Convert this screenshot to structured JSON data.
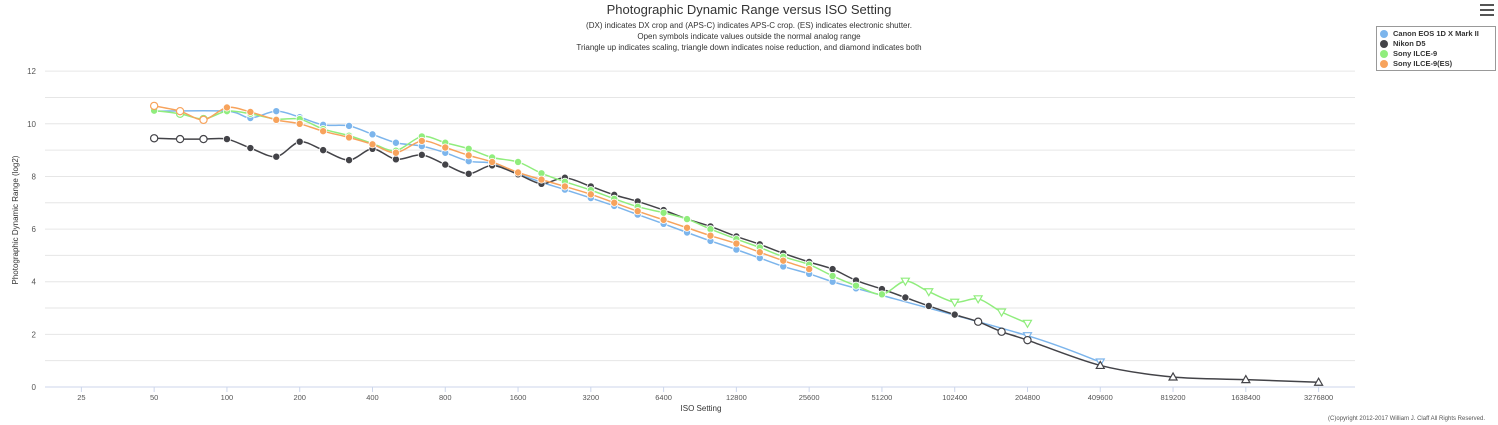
{
  "header": {
    "title": "Photographic Dynamic Range versus ISO Setting",
    "subtitle_lines": [
      "(DX) indicates DX crop and (APS-C) indicates APS-C crop. (ES) indicates electronic shutter.",
      "Open symbols indicate values outside the normal analog range",
      "Triangle up indicates scaling, triangle down indicates noise reduction, and diamond indicates both"
    ]
  },
  "menu_icon": "hamburger-menu-icon",
  "copyright": "(C)opyright 2012-2017 William J. Claff All Rights Reserved.",
  "chart_data": {
    "type": "line",
    "title": "Photographic Dynamic Range versus ISO Setting",
    "xlabel": "ISO Setting",
    "ylabel": "Photographic Dynamic Range (log2)",
    "x_scale": "log2",
    "xlim": [
      17.68,
      4634500
    ],
    "ylim": [
      0,
      12.5
    ],
    "x_ticks": [
      25,
      50,
      100,
      200,
      400,
      800,
      1600,
      3200,
      6400,
      12800,
      25600,
      51200,
      102400,
      204800,
      409600,
      819200,
      1638400,
      3276800
    ],
    "y_ticks": [
      0,
      2,
      4,
      6,
      8,
      10,
      12
    ],
    "grid": true,
    "legend_position": "top-right",
    "series": [
      {
        "name": "Canon EOS 1D X Mark II",
        "color": "#7cb5ec",
        "points": [
          {
            "x": 50,
            "y": 10.48,
            "marker": "circle"
          },
          {
            "x": 100,
            "y": 10.48,
            "marker": "circle"
          },
          {
            "x": 125,
            "y": 10.22,
            "marker": "circle"
          },
          {
            "x": 160,
            "y": 10.48,
            "marker": "circle"
          },
          {
            "x": 200,
            "y": 10.25,
            "marker": "circle"
          },
          {
            "x": 250,
            "y": 9.96,
            "marker": "circle"
          },
          {
            "x": 320,
            "y": 9.92,
            "marker": "circle"
          },
          {
            "x": 400,
            "y": 9.6,
            "marker": "circle"
          },
          {
            "x": 500,
            "y": 9.28,
            "marker": "circle"
          },
          {
            "x": 640,
            "y": 9.15,
            "marker": "circle"
          },
          {
            "x": 800,
            "y": 8.9,
            "marker": "circle"
          },
          {
            "x": 1000,
            "y": 8.58,
            "marker": "circle"
          },
          {
            "x": 1250,
            "y": 8.5,
            "marker": "circle"
          },
          {
            "x": 1600,
            "y": 8.1,
            "marker": "circle"
          },
          {
            "x": 2000,
            "y": 7.78,
            "marker": "circle"
          },
          {
            "x": 2500,
            "y": 7.5,
            "marker": "circle"
          },
          {
            "x": 3200,
            "y": 7.18,
            "marker": "circle"
          },
          {
            "x": 4000,
            "y": 6.88,
            "marker": "circle"
          },
          {
            "x": 5000,
            "y": 6.55,
            "marker": "circle"
          },
          {
            "x": 6400,
            "y": 6.2,
            "marker": "circle"
          },
          {
            "x": 8000,
            "y": 5.87,
            "marker": "circle"
          },
          {
            "x": 10000,
            "y": 5.55,
            "marker": "circle"
          },
          {
            "x": 12800,
            "y": 5.22,
            "marker": "circle"
          },
          {
            "x": 16000,
            "y": 4.9,
            "marker": "circle"
          },
          {
            "x": 20000,
            "y": 4.58,
            "marker": "circle"
          },
          {
            "x": 25600,
            "y": 4.3,
            "marker": "circle"
          },
          {
            "x": 32000,
            "y": 4.0,
            "marker": "circle"
          },
          {
            "x": 40000,
            "y": 3.75,
            "marker": "circle"
          },
          {
            "x": 204800,
            "y": 1.95,
            "marker": "triangle-down-open"
          },
          {
            "x": 409600,
            "y": 0.95,
            "marker": "triangle-down-open"
          }
        ]
      },
      {
        "name": "Nikon D5",
        "color": "#434348",
        "points": [
          {
            "x": 50,
            "y": 9.45,
            "marker": "circle-open"
          },
          {
            "x": 64,
            "y": 9.42,
            "marker": "circle-open"
          },
          {
            "x": 80,
            "y": 9.42,
            "marker": "circle-open"
          },
          {
            "x": 100,
            "y": 9.42,
            "marker": "circle"
          },
          {
            "x": 125,
            "y": 9.08,
            "marker": "circle"
          },
          {
            "x": 160,
            "y": 8.75,
            "marker": "circle"
          },
          {
            "x": 200,
            "y": 9.32,
            "marker": "circle"
          },
          {
            "x": 250,
            "y": 9.0,
            "marker": "circle"
          },
          {
            "x": 320,
            "y": 8.62,
            "marker": "circle"
          },
          {
            "x": 400,
            "y": 9.05,
            "marker": "circle"
          },
          {
            "x": 500,
            "y": 8.65,
            "marker": "circle"
          },
          {
            "x": 640,
            "y": 8.82,
            "marker": "circle"
          },
          {
            "x": 800,
            "y": 8.45,
            "marker": "circle"
          },
          {
            "x": 1000,
            "y": 8.1,
            "marker": "circle"
          },
          {
            "x": 1250,
            "y": 8.42,
            "marker": "circle"
          },
          {
            "x": 1600,
            "y": 8.08,
            "marker": "circle"
          },
          {
            "x": 2000,
            "y": 7.72,
            "marker": "circle"
          },
          {
            "x": 2500,
            "y": 7.95,
            "marker": "circle"
          },
          {
            "x": 3200,
            "y": 7.62,
            "marker": "circle"
          },
          {
            "x": 4000,
            "y": 7.3,
            "marker": "circle"
          },
          {
            "x": 5000,
            "y": 7.05,
            "marker": "circle"
          },
          {
            "x": 6400,
            "y": 6.72,
            "marker": "circle"
          },
          {
            "x": 8000,
            "y": 6.38,
            "marker": "circle"
          },
          {
            "x": 10000,
            "y": 6.1,
            "marker": "circle"
          },
          {
            "x": 12800,
            "y": 5.72,
            "marker": "circle"
          },
          {
            "x": 16000,
            "y": 5.42,
            "marker": "circle"
          },
          {
            "x": 20000,
            "y": 5.08,
            "marker": "circle"
          },
          {
            "x": 25600,
            "y": 4.75,
            "marker": "circle"
          },
          {
            "x": 32000,
            "y": 4.48,
            "marker": "circle"
          },
          {
            "x": 40000,
            "y": 4.05,
            "marker": "circle"
          },
          {
            "x": 51200,
            "y": 3.72,
            "marker": "circle"
          },
          {
            "x": 64000,
            "y": 3.4,
            "marker": "circle"
          },
          {
            "x": 80000,
            "y": 3.08,
            "marker": "circle"
          },
          {
            "x": 102400,
            "y": 2.75,
            "marker": "circle"
          },
          {
            "x": 128000,
            "y": 2.48,
            "marker": "circle-open"
          },
          {
            "x": 160000,
            "y": 2.1,
            "marker": "circle-open"
          },
          {
            "x": 204800,
            "y": 1.78,
            "marker": "circle-open"
          },
          {
            "x": 409600,
            "y": 0.82,
            "marker": "triangle-up-open"
          },
          {
            "x": 819200,
            "y": 0.38,
            "marker": "triangle-up-open"
          },
          {
            "x": 1638400,
            "y": 0.28,
            "marker": "triangle-up-open"
          },
          {
            "x": 3276800,
            "y": 0.18,
            "marker": "triangle-up-open"
          }
        ]
      },
      {
        "name": "Sony ILCE-9",
        "color": "#90ed7d",
        "points": [
          {
            "x": 50,
            "y": 10.5,
            "marker": "circle"
          },
          {
            "x": 64,
            "y": 10.38,
            "marker": "circle-open"
          },
          {
            "x": 80,
            "y": 10.18,
            "marker": "circle-open"
          },
          {
            "x": 100,
            "y": 10.48,
            "marker": "circle"
          },
          {
            "x": 125,
            "y": 10.38,
            "marker": "circle"
          },
          {
            "x": 160,
            "y": 10.18,
            "marker": "circle"
          },
          {
            "x": 200,
            "y": 10.18,
            "marker": "circle"
          },
          {
            "x": 250,
            "y": 9.8,
            "marker": "circle"
          },
          {
            "x": 320,
            "y": 9.55,
            "marker": "circle"
          },
          {
            "x": 400,
            "y": 9.25,
            "marker": "circle"
          },
          {
            "x": 500,
            "y": 8.98,
            "marker": "circle"
          },
          {
            "x": 640,
            "y": 9.52,
            "marker": "circle"
          },
          {
            "x": 800,
            "y": 9.28,
            "marker": "circle"
          },
          {
            "x": 1000,
            "y": 9.05,
            "marker": "circle"
          },
          {
            "x": 1250,
            "y": 8.72,
            "marker": "circle"
          },
          {
            "x": 1600,
            "y": 8.55,
            "marker": "circle"
          },
          {
            "x": 2000,
            "y": 8.12,
            "marker": "circle"
          },
          {
            "x": 2500,
            "y": 7.8,
            "marker": "circle"
          },
          {
            "x": 3200,
            "y": 7.48,
            "marker": "circle"
          },
          {
            "x": 4000,
            "y": 7.15,
            "marker": "circle"
          },
          {
            "x": 5000,
            "y": 6.85,
            "marker": "circle"
          },
          {
            "x": 6400,
            "y": 6.62,
            "marker": "circle"
          },
          {
            "x": 8000,
            "y": 6.38,
            "marker": "circle"
          },
          {
            "x": 10000,
            "y": 6.0,
            "marker": "circle"
          },
          {
            "x": 12800,
            "y": 5.62,
            "marker": "circle"
          },
          {
            "x": 16000,
            "y": 5.3,
            "marker": "circle"
          },
          {
            "x": 20000,
            "y": 4.95,
            "marker": "circle"
          },
          {
            "x": 25600,
            "y": 4.65,
            "marker": "circle"
          },
          {
            "x": 32000,
            "y": 4.22,
            "marker": "circle"
          },
          {
            "x": 40000,
            "y": 3.85,
            "marker": "circle"
          },
          {
            "x": 51200,
            "y": 3.52,
            "marker": "circle"
          },
          {
            "x": 64000,
            "y": 4.02,
            "marker": "triangle-down-open"
          },
          {
            "x": 80000,
            "y": 3.62,
            "marker": "triangle-down-open"
          },
          {
            "x": 102400,
            "y": 3.22,
            "marker": "triangle-down-open"
          },
          {
            "x": 128000,
            "y": 3.35,
            "marker": "triangle-down-open"
          },
          {
            "x": 160000,
            "y": 2.85,
            "marker": "triangle-down-open"
          },
          {
            "x": 204800,
            "y": 2.42,
            "marker": "triangle-down-open"
          }
        ]
      },
      {
        "name": "Sony ILCE-9(ES)",
        "color": "#f7a35c",
        "points": [
          {
            "x": 50,
            "y": 10.68,
            "marker": "circle-open"
          },
          {
            "x": 64,
            "y": 10.48,
            "marker": "circle-open"
          },
          {
            "x": 80,
            "y": 10.15,
            "marker": "circle-open"
          },
          {
            "x": 100,
            "y": 10.62,
            "marker": "circle"
          },
          {
            "x": 125,
            "y": 10.45,
            "marker": "circle"
          },
          {
            "x": 160,
            "y": 10.15,
            "marker": "circle"
          },
          {
            "x": 200,
            "y": 10.0,
            "marker": "circle"
          },
          {
            "x": 250,
            "y": 9.72,
            "marker": "circle"
          },
          {
            "x": 320,
            "y": 9.48,
            "marker": "circle"
          },
          {
            "x": 400,
            "y": 9.22,
            "marker": "circle"
          },
          {
            "x": 500,
            "y": 8.9,
            "marker": "circle"
          },
          {
            "x": 640,
            "y": 9.35,
            "marker": "circle"
          },
          {
            "x": 800,
            "y": 9.1,
            "marker": "circle"
          },
          {
            "x": 1000,
            "y": 8.8,
            "marker": "circle"
          },
          {
            "x": 1250,
            "y": 8.55,
            "marker": "circle"
          },
          {
            "x": 1600,
            "y": 8.15,
            "marker": "circle"
          },
          {
            "x": 2000,
            "y": 7.88,
            "marker": "circle"
          },
          {
            "x": 2500,
            "y": 7.62,
            "marker": "circle"
          },
          {
            "x": 3200,
            "y": 7.32,
            "marker": "circle"
          },
          {
            "x": 4000,
            "y": 7.0,
            "marker": "circle"
          },
          {
            "x": 5000,
            "y": 6.68,
            "marker": "circle"
          },
          {
            "x": 6400,
            "y": 6.35,
            "marker": "circle"
          },
          {
            "x": 8000,
            "y": 6.05,
            "marker": "circle"
          },
          {
            "x": 10000,
            "y": 5.75,
            "marker": "circle"
          },
          {
            "x": 12800,
            "y": 5.45,
            "marker": "circle"
          },
          {
            "x": 16000,
            "y": 5.12,
            "marker": "circle"
          },
          {
            "x": 20000,
            "y": 4.8,
            "marker": "circle"
          },
          {
            "x": 25600,
            "y": 4.48,
            "marker": "circle"
          }
        ]
      }
    ]
  }
}
